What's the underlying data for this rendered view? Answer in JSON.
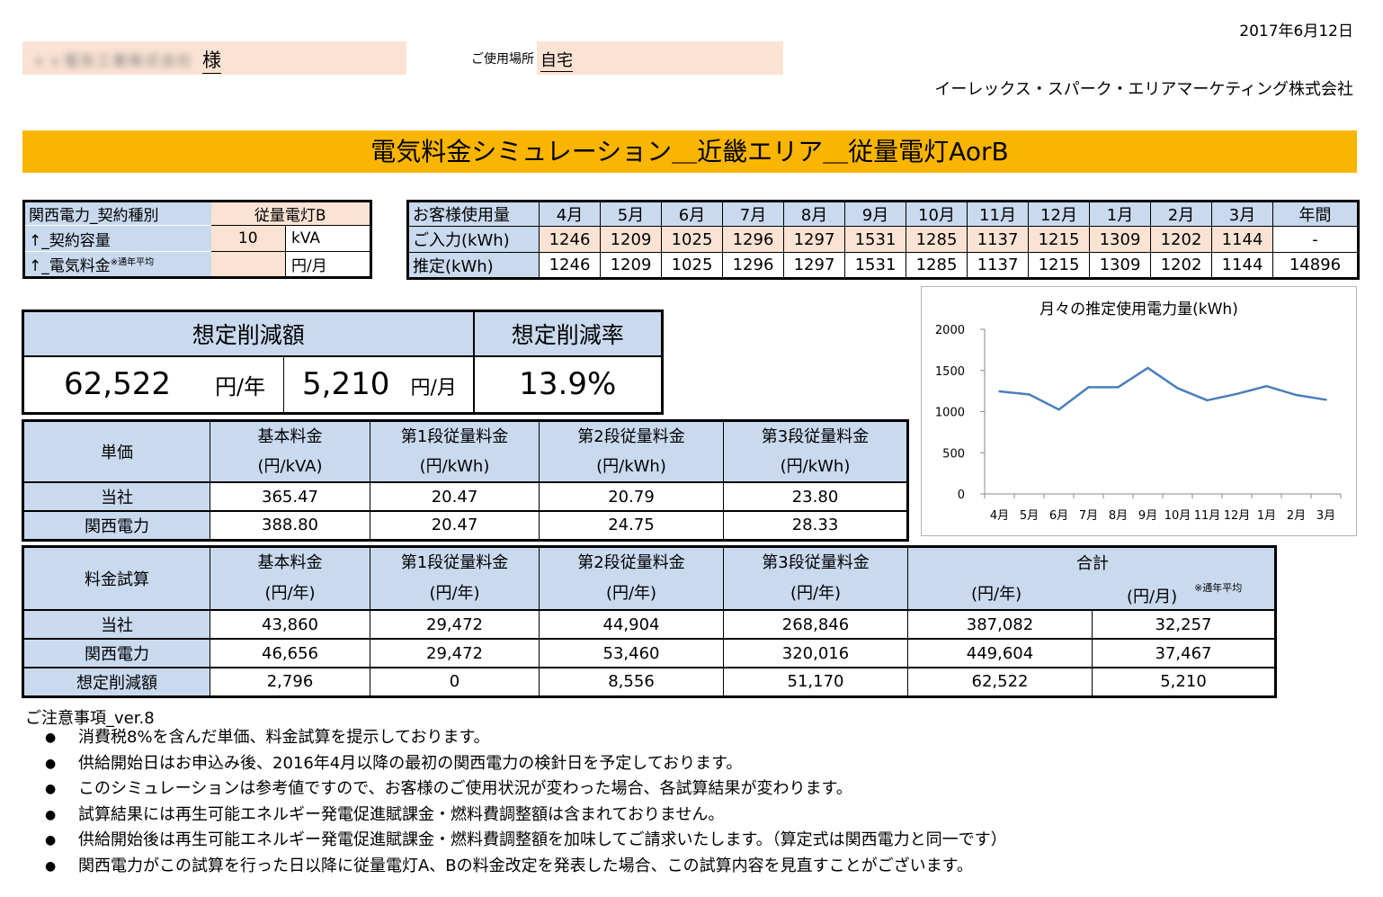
{
  "header": {
    "date": "2017年6月12日",
    "customer_name": "ｘｘ電気工業株式会社",
    "honorific": "様",
    "place_label": "ご使用場所",
    "place_value": "自宅",
    "company": "イーレックス・スパーク・エリアマーケティング株式会社"
  },
  "banner_title": "電気料金シミュレーション＿近畿エリア＿従量電灯AorB",
  "contract": {
    "r1_label": "関西電力_契約種別",
    "r1_value": "従量電灯B",
    "r2_label": "↑_契約容量",
    "r2_value": "10",
    "r2_unit": "kVA",
    "r3_label": "↑_電気料金",
    "r3_note": "※通年平均",
    "r3_value": "",
    "r3_unit": "円/月"
  },
  "usage": {
    "header_label": "お客様使用量",
    "months": [
      "4月",
      "5月",
      "6月",
      "7月",
      "8月",
      "9月",
      "10月",
      "11月",
      "12月",
      "1月",
      "2月",
      "3月"
    ],
    "annual_label": "年間",
    "input_label": "ご入力(kWh)",
    "input_values": [
      "1246",
      "1209",
      "1025",
      "1296",
      "1297",
      "1531",
      "1285",
      "1137",
      "1215",
      "1309",
      "1202",
      "1144"
    ],
    "input_annual": "-",
    "estimate_label": "推定(kWh)",
    "estimate_values": [
      "1246",
      "1209",
      "1025",
      "1296",
      "1297",
      "1531",
      "1285",
      "1137",
      "1215",
      "1309",
      "1202",
      "1144"
    ],
    "estimate_annual": "14896"
  },
  "savings": {
    "amount_header": "想定削減額",
    "rate_header": "想定削減率",
    "yearly_value": "62,522",
    "yearly_unit": "円/年",
    "monthly_value": "5,210",
    "monthly_unit": "円/月",
    "rate_value": "13.9%"
  },
  "unit_price": {
    "corner": "単価",
    "headers": [
      {
        "name": "基本料金",
        "unit": "(円/kVA)"
      },
      {
        "name": "第1段従量料金",
        "unit": "(円/kWh)"
      },
      {
        "name": "第2段従量料金",
        "unit": "(円/kWh)"
      },
      {
        "name": "第3段従量料金",
        "unit": "(円/kWh)"
      }
    ],
    "rows": [
      {
        "label": "当社",
        "values": [
          "365.47",
          "20.47",
          "20.79",
          "23.80"
        ]
      },
      {
        "label": "関西電力",
        "values": [
          "388.80",
          "20.47",
          "24.75",
          "28.33"
        ]
      }
    ]
  },
  "fee": {
    "corner": "料金試算",
    "headers": [
      {
        "name": "基本料金",
        "unit": "(円/年)"
      },
      {
        "name": "第1段従量料金",
        "unit": "(円/年)"
      },
      {
        "name": "第2段従量料金",
        "unit": "(円/年)"
      },
      {
        "name": "第3段従量料金",
        "unit": "(円/年)"
      }
    ],
    "total_header": "合計",
    "total_unit_year": "(円/年)",
    "total_unit_month": "(円/月)",
    "total_note": "※通年平均",
    "rows": [
      {
        "label": "当社",
        "values": [
          "43,860",
          "29,472",
          "44,904",
          "268,846",
          "387,082",
          "32,257"
        ]
      },
      {
        "label": "関西電力",
        "values": [
          "46,656",
          "29,472",
          "53,460",
          "320,016",
          "449,604",
          "37,467"
        ]
      },
      {
        "label": "想定削減額",
        "values": [
          "2,796",
          "0",
          "8,556",
          "51,170",
          "62,522",
          "5,210"
        ]
      }
    ]
  },
  "notes": {
    "title": "ご注意事項_ver.8",
    "bullet": "●",
    "items": [
      "消費税8%を含んだ単価、料金試算を提示しております。",
      "供給開始日はお申込み後、2016年4月以降の最初の関西電力の検針日を予定しております。",
      "このシミュレーションは参考値ですので、お客様のご使用状況が変わった場合、各試算結果が変わります。",
      "試算結果には再生可能エネルギー発電促進賦課金・燃料費調整額は含まれておりません。",
      "供給開始後は再生可能エネルギー発電促進賦課金・燃料費調整額を加味してご請求いたします。（算定式は関西電力と同一です）",
      "関西電力がこの試算を行った日以降に従量電灯A、Bの料金改定を発表した場合、この試算内容を見直すことがございます。"
    ]
  },
  "chart_data": {
    "type": "line",
    "title": "月々の推定使用電力量(kWh)",
    "categories": [
      "4月",
      "5月",
      "6月",
      "7月",
      "8月",
      "9月",
      "10月",
      "11月",
      "12月",
      "1月",
      "2月",
      "3月"
    ],
    "values": [
      1246,
      1209,
      1025,
      1296,
      1297,
      1531,
      1285,
      1137,
      1215,
      1309,
      1202,
      1144
    ],
    "y_ticks": [
      "0",
      "500",
      "1000",
      "1500",
      "2000"
    ],
    "ylim": [
      0,
      2000
    ],
    "grid": false,
    "legend": "none",
    "line_color": "#4a7ebb"
  }
}
